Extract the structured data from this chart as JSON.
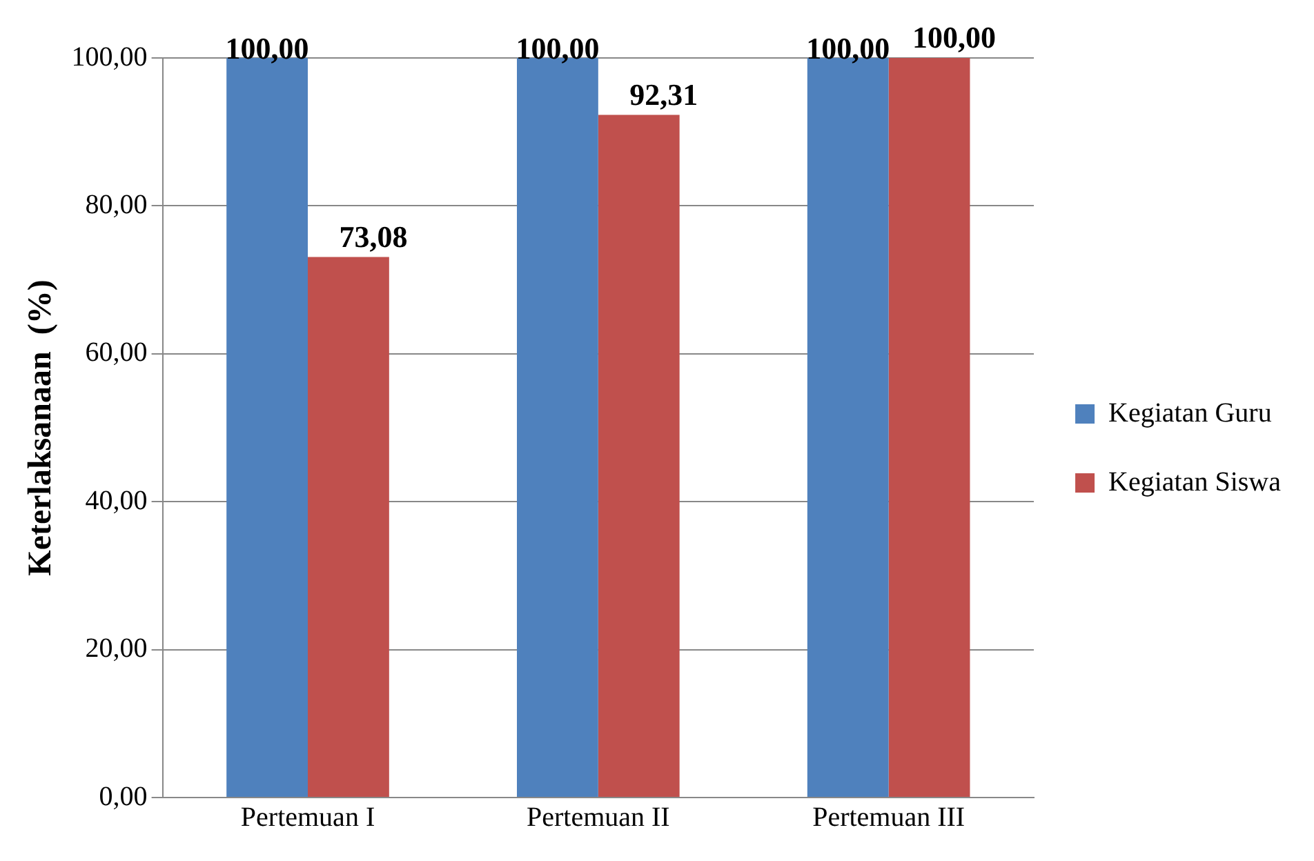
{
  "chart_data": {
    "type": "bar",
    "ylabel": "Keterlaksanaan  (%)",
    "categories": [
      "Pertemuan I",
      "Pertemuan II",
      "Pertemuan III"
    ],
    "series": [
      {
        "name": "Kegiatan Guru",
        "color": "#4f81bd",
        "values": [
          100,
          100,
          100
        ],
        "value_labels": [
          "100,00",
          "100,00",
          "100,00"
        ]
      },
      {
        "name": "Kegiatan Siswa",
        "color": "#c0504d",
        "values": [
          73.08,
          92.31,
          100
        ],
        "value_labels": [
          "73,08",
          "92,31",
          "100,00"
        ]
      }
    ],
    "ylim": [
      0,
      100
    ],
    "yticks": [
      {
        "value": 0,
        "label": "0,00"
      },
      {
        "value": 20,
        "label": "20,00"
      },
      {
        "value": 40,
        "label": "40,00"
      },
      {
        "value": 60,
        "label": "60,00"
      },
      {
        "value": 80,
        "label": "80,00"
      },
      {
        "value": 100,
        "label": "100,00"
      }
    ],
    "grid": "y",
    "legend": "right"
  }
}
